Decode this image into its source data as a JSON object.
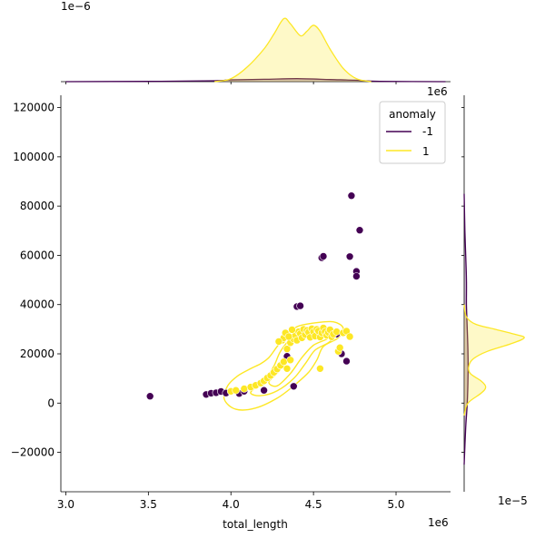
{
  "chart_data": {
    "type": "scatter",
    "title": "",
    "xlabel": "total_length",
    "ylabel": "",
    "x_offset_label": "1e6",
    "xlim": [
      2970000,
      5330000
    ],
    "ylim": [
      -36000,
      125000
    ],
    "x_ticks": [
      3000000,
      3500000,
      4000000,
      4500000,
      5000000
    ],
    "x_tick_labels": [
      "3.0",
      "3.5",
      "4.0",
      "4.5",
      "5.0"
    ],
    "y_ticks": [
      -20000,
      0,
      20000,
      40000,
      60000,
      80000,
      100000,
      120000
    ],
    "y_tick_labels": [
      "−20000",
      "0",
      "20000",
      "40000",
      "60000",
      "80000",
      "100000",
      "120000"
    ],
    "legend": {
      "title": "anomaly",
      "position": "top-right",
      "entries": [
        {
          "label": "-1",
          "color": "#440154"
        },
        {
          "label": "1",
          "color": "#fde725"
        }
      ]
    },
    "top_marginal": {
      "offset_label": "1e−6",
      "type": "kde",
      "series": [
        {
          "name": "-1",
          "color": "#440154",
          "curve": [
            [
              3000000,
              0.0
            ],
            [
              3500000,
              0.01
            ],
            [
              3900000,
              0.03
            ],
            [
              4000000,
              0.06
            ],
            [
              4200000,
              0.08
            ],
            [
              4400000,
              0.1
            ],
            [
              4600000,
              0.07
            ],
            [
              4750000,
              0.05
            ],
            [
              4900000,
              0.01
            ],
            [
              5300000,
              0.0
            ]
          ]
        },
        {
          "name": "1",
          "color": "#fde725",
          "curve": [
            [
              3900000,
              0.0
            ],
            [
              4000000,
              0.1
            ],
            [
              4100000,
              0.5
            ],
            [
              4200000,
              1.1
            ],
            [
              4260000,
              1.6
            ],
            [
              4320000,
              2.12
            ],
            [
              4360000,
              1.95
            ],
            [
              4420000,
              1.55
            ],
            [
              4460000,
              1.7
            ],
            [
              4500000,
              1.9
            ],
            [
              4540000,
              1.7
            ],
            [
              4600000,
              1.1
            ],
            [
              4680000,
              0.45
            ],
            [
              4760000,
              0.1
            ],
            [
              4850000,
              0.0
            ]
          ]
        }
      ]
    },
    "right_marginal": {
      "offset_label": "1e−5",
      "type": "kde",
      "series": [
        {
          "name": "-1",
          "color": "#440154",
          "curve": [
            [
              -25000,
              0.0
            ],
            [
              -10000,
              0.02
            ],
            [
              0,
              0.04
            ],
            [
              10000,
              0.05
            ],
            [
              20000,
              0.05
            ],
            [
              30000,
              0.04
            ],
            [
              40000,
              0.03
            ],
            [
              50000,
              0.03
            ],
            [
              60000,
              0.02
            ],
            [
              70000,
              0.01
            ],
            [
              85000,
              0.0
            ]
          ]
        },
        {
          "name": "1",
          "color": "#fde725",
          "curve": [
            [
              -5000,
              0.0
            ],
            [
              0,
              0.05
            ],
            [
              4000,
              0.22
            ],
            [
              6500,
              0.28
            ],
            [
              9000,
              0.22
            ],
            [
              12000,
              0.08
            ],
            [
              15000,
              0.06
            ],
            [
              18000,
              0.12
            ],
            [
              21000,
              0.3
            ],
            [
              24000,
              0.6
            ],
            [
              26500,
              0.78
            ],
            [
              28000,
              0.65
            ],
            [
              30000,
              0.4
            ],
            [
              32000,
              0.15
            ],
            [
              35000,
              0.03
            ],
            [
              40000,
              0.0
            ]
          ]
        }
      ]
    },
    "kde_contours": [
      {
        "series": "1",
        "points": [
          [
            4040000,
            11000
          ],
          [
            4120000,
            14000
          ],
          [
            4180000,
            16000
          ],
          [
            4230000,
            18500
          ],
          [
            4280000,
            23000
          ],
          [
            4330000,
            27000
          ],
          [
            4400000,
            31000
          ],
          [
            4500000,
            32500
          ],
          [
            4620000,
            33000
          ],
          [
            4680000,
            30500
          ],
          [
            4650000,
            26500
          ],
          [
            4560000,
            23000
          ],
          [
            4520000,
            17500
          ],
          [
            4470000,
            12500
          ],
          [
            4380000,
            7000
          ],
          [
            4280000,
            2000
          ],
          [
            4150000,
            -2000
          ],
          [
            4030000,
            -2500
          ],
          [
            3960000,
            1500
          ],
          [
            3980000,
            7000
          ]
        ]
      },
      {
        "series": "1",
        "points": [
          [
            4150000,
            6500
          ],
          [
            4210000,
            10000
          ],
          [
            4260000,
            15000
          ],
          [
            4300000,
            21000
          ],
          [
            4360000,
            26000
          ],
          [
            4440000,
            29500
          ],
          [
            4540000,
            30800
          ],
          [
            4630000,
            29500
          ],
          [
            4600000,
            25000
          ],
          [
            4510000,
            21500
          ],
          [
            4450000,
            16000
          ],
          [
            4380000,
            10000
          ],
          [
            4280000,
            5000
          ],
          [
            4180000,
            3000
          ],
          [
            4120000,
            4000
          ]
        ]
      },
      {
        "series": "1",
        "points": [
          [
            4230000,
            8500
          ],
          [
            4290000,
            13000
          ],
          [
            4340000,
            20500
          ],
          [
            4380000,
            25000
          ],
          [
            4460000,
            28500
          ],
          [
            4560000,
            29500
          ],
          [
            4590000,
            26500
          ],
          [
            4500000,
            23500
          ],
          [
            4430000,
            18500
          ],
          [
            4360000,
            12000
          ],
          [
            4280000,
            7000
          ]
        ]
      }
    ],
    "series": [
      {
        "name": "-1",
        "color": "#440154",
        "points": [
          [
            3510000,
            2800
          ],
          [
            3850000,
            3500
          ],
          [
            3880000,
            4000
          ],
          [
            3910000,
            4200
          ],
          [
            3940000,
            4700
          ],
          [
            3970000,
            4100
          ],
          [
            4050000,
            3900
          ],
          [
            4080000,
            4800
          ],
          [
            4200000,
            5200
          ],
          [
            4340000,
            19000
          ],
          [
            4380000,
            6800
          ],
          [
            4400000,
            39200
          ],
          [
            4420000,
            39500
          ],
          [
            4550000,
            59000
          ],
          [
            4560000,
            59600
          ],
          [
            4640000,
            28000
          ],
          [
            4670000,
            20000
          ],
          [
            4700000,
            17000
          ],
          [
            4720000,
            59500
          ],
          [
            4730000,
            84200
          ],
          [
            4760000,
            53500
          ],
          [
            4760000,
            51500
          ],
          [
            4780000,
            70200
          ]
        ]
      },
      {
        "name": "1",
        "color": "#fde725",
        "points": [
          [
            4000000,
            4800
          ],
          [
            4030000,
            5200
          ],
          [
            4080000,
            5800
          ],
          [
            4120000,
            6500
          ],
          [
            4150000,
            7200
          ],
          [
            4180000,
            8100
          ],
          [
            4200000,
            9000
          ],
          [
            4220000,
            10200
          ],
          [
            4240000,
            11200
          ],
          [
            4260000,
            12500
          ],
          [
            4280000,
            13800
          ],
          [
            4300000,
            15300
          ],
          [
            4320000,
            16800
          ],
          [
            4340000,
            14000
          ],
          [
            4340000,
            22000
          ],
          [
            4360000,
            24500
          ],
          [
            4360000,
            17500
          ],
          [
            4380000,
            26000
          ],
          [
            4390000,
            27500
          ],
          [
            4400000,
            25500
          ],
          [
            4410000,
            29000
          ],
          [
            4420000,
            28200
          ],
          [
            4430000,
            26500
          ],
          [
            4440000,
            30000
          ],
          [
            4450000,
            27800
          ],
          [
            4460000,
            29500
          ],
          [
            4470000,
            28800
          ],
          [
            4480000,
            26700
          ],
          [
            4490000,
            30200
          ],
          [
            4500000,
            28900
          ],
          [
            4510000,
            27200
          ],
          [
            4520000,
            30000
          ],
          [
            4530000,
            29300
          ],
          [
            4540000,
            26800
          ],
          [
            4540000,
            14000
          ],
          [
            4550000,
            28500
          ],
          [
            4560000,
            30500
          ],
          [
            4570000,
            29000
          ],
          [
            4580000,
            27500
          ],
          [
            4590000,
            28700
          ],
          [
            4600000,
            29800
          ],
          [
            4610000,
            26900
          ],
          [
            4620000,
            28000
          ],
          [
            4640000,
            29000
          ],
          [
            4650000,
            21000
          ],
          [
            4660000,
            22500
          ],
          [
            4680000,
            28500
          ],
          [
            4700000,
            29200
          ],
          [
            4720000,
            27000
          ],
          [
            4310000,
            25500
          ],
          [
            4320000,
            26500
          ],
          [
            4330000,
            28500
          ],
          [
            4350000,
            27000
          ],
          [
            4370000,
            29800
          ],
          [
            4290000,
            25000
          ]
        ]
      }
    ]
  }
}
